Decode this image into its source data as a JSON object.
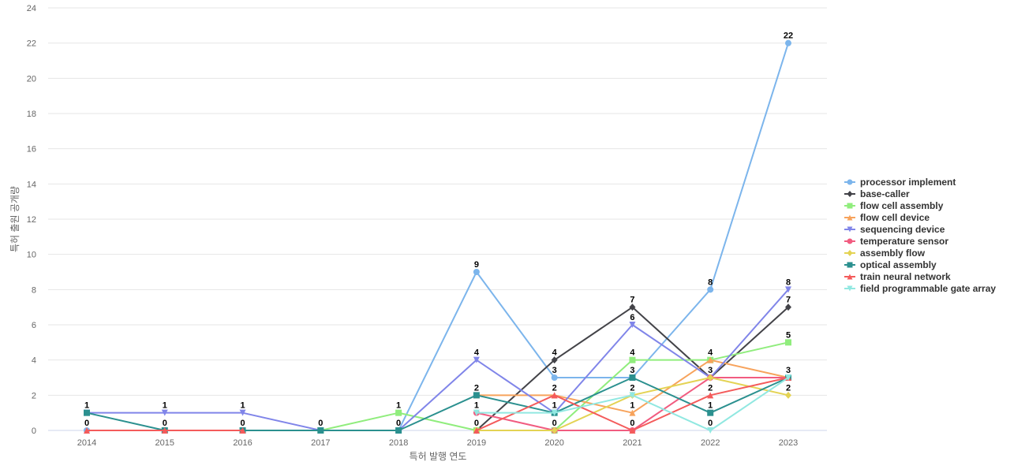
{
  "chart_data": {
    "type": "line",
    "xlabel": "특허 발행 연도",
    "ylabel": "특허 출원 공개량",
    "ylim": [
      0,
      24
    ],
    "yticks": [
      0,
      2,
      4,
      6,
      8,
      10,
      12,
      14,
      16,
      18,
      20,
      22,
      24
    ],
    "grid": true,
    "legend_position": "right",
    "categories": [
      "2014",
      "2015",
      "2016",
      "2017",
      "2018",
      "2019",
      "2020",
      "2021",
      "2022",
      "2023"
    ],
    "series": [
      {
        "name": "processor implement",
        "color": "#7cb5ec",
        "marker": "circle",
        "values": [
          0,
          0,
          0,
          null,
          0,
          9,
          3,
          3,
          8,
          22
        ]
      },
      {
        "name": "base-caller",
        "color": "#434348",
        "marker": "diamond",
        "values": [
          null,
          null,
          null,
          null,
          null,
          0,
          4,
          7,
          3,
          7
        ]
      },
      {
        "name": "flow cell assembly",
        "color": "#90ed7d",
        "marker": "square",
        "values": [
          null,
          null,
          null,
          0,
          1,
          0,
          0,
          4,
          4,
          5
        ]
      },
      {
        "name": "flow cell device",
        "color": "#f7a35c",
        "marker": "triangle",
        "values": [
          null,
          null,
          null,
          null,
          null,
          2,
          2,
          1,
          4,
          3
        ]
      },
      {
        "name": "sequencing device",
        "color": "#8085e9",
        "marker": "triangle-down",
        "values": [
          1,
          1,
          1,
          0,
          0,
          4,
          1,
          6,
          3,
          8
        ]
      },
      {
        "name": "temperature sensor",
        "color": "#f15c80",
        "marker": "circle",
        "values": [
          null,
          null,
          null,
          null,
          null,
          1,
          0,
          0,
          3,
          3
        ]
      },
      {
        "name": "assembly flow",
        "color": "#e4d354",
        "marker": "diamond",
        "values": [
          null,
          null,
          null,
          null,
          null,
          0,
          0,
          2,
          3,
          2
        ]
      },
      {
        "name": "optical assembly",
        "color": "#2b908f",
        "marker": "square",
        "values": [
          1,
          0,
          0,
          0,
          0,
          2,
          1,
          3,
          1,
          3
        ]
      },
      {
        "name": "train neural network",
        "color": "#f45b5b",
        "marker": "triangle",
        "values": [
          0,
          0,
          0,
          null,
          null,
          0,
          2,
          0,
          2,
          3
        ]
      },
      {
        "name": "field programmable gate array",
        "color": "#91e8e1",
        "marker": "triangle-down",
        "values": [
          null,
          null,
          null,
          null,
          null,
          1,
          1,
          2,
          0,
          3
        ]
      }
    ],
    "data_labels": [
      {
        "x": "2014",
        "text": "1",
        "value": 1
      },
      {
        "x": "2014",
        "text": "0",
        "value": 0
      },
      {
        "x": "2015",
        "text": "1",
        "value": 1
      },
      {
        "x": "2015",
        "text": "0",
        "value": 0
      },
      {
        "x": "2016",
        "text": "1",
        "value": 1
      },
      {
        "x": "2016",
        "text": "0",
        "value": 0
      },
      {
        "x": "2017",
        "text": "0",
        "value": 0
      },
      {
        "x": "2018",
        "text": "1",
        "value": 1
      },
      {
        "x": "2018",
        "text": "0",
        "value": 0
      },
      {
        "x": "2019",
        "text": "9",
        "value": 9
      },
      {
        "x": "2019",
        "text": "4",
        "value": 4
      },
      {
        "x": "2019",
        "text": "2",
        "value": 2
      },
      {
        "x": "2019",
        "text": "1",
        "value": 1
      },
      {
        "x": "2019",
        "text": "0",
        "value": 0
      },
      {
        "x": "2020",
        "text": "4",
        "value": 4
      },
      {
        "x": "2020",
        "text": "3",
        "value": 3
      },
      {
        "x": "2020",
        "text": "2",
        "value": 2
      },
      {
        "x": "2020",
        "text": "1",
        "value": 1
      },
      {
        "x": "2020",
        "text": "0",
        "value": 0
      },
      {
        "x": "2021",
        "text": "7",
        "value": 7
      },
      {
        "x": "2021",
        "text": "6",
        "value": 6
      },
      {
        "x": "2021",
        "text": "4",
        "value": 4
      },
      {
        "x": "2021",
        "text": "3",
        "value": 3
      },
      {
        "x": "2021",
        "text": "2",
        "value": 2
      },
      {
        "x": "2021",
        "text": "1",
        "value": 1
      },
      {
        "x": "2021",
        "text": "0",
        "value": 0
      },
      {
        "x": "2022",
        "text": "8",
        "value": 8
      },
      {
        "x": "2022",
        "text": "4",
        "value": 4
      },
      {
        "x": "2022",
        "text": "3",
        "value": 3
      },
      {
        "x": "2022",
        "text": "2",
        "value": 2
      },
      {
        "x": "2022",
        "text": "1",
        "value": 1
      },
      {
        "x": "2022",
        "text": "0",
        "value": 0
      },
      {
        "x": "2023",
        "text": "22",
        "value": 22
      },
      {
        "x": "2023",
        "text": "8",
        "value": 8
      },
      {
        "x": "2023",
        "text": "7",
        "value": 7
      },
      {
        "x": "2023",
        "text": "5",
        "value": 5
      },
      {
        "x": "2023",
        "text": "3",
        "value": 3
      },
      {
        "x": "2023",
        "text": "2",
        "value": 2
      }
    ]
  }
}
